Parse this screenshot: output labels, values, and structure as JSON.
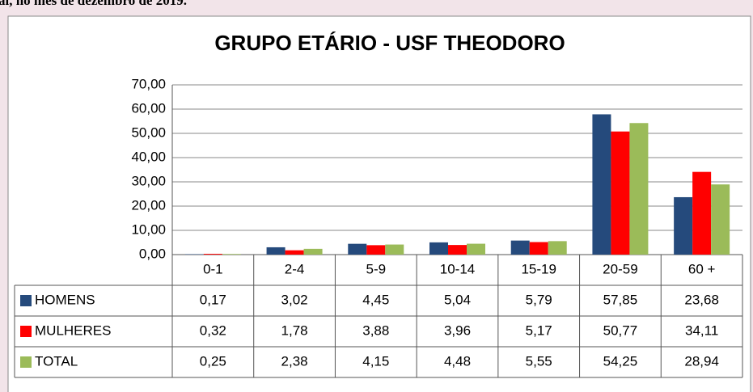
{
  "header_text": "al, no mês de dezembro de 2019.",
  "chart_data": {
    "type": "bar",
    "title": "GRUPO ETÁRIO -  USF THEODORO",
    "categories": [
      "0-1",
      "2-4",
      "5-9",
      "10-14",
      "15-19",
      "20-59",
      "60 +"
    ],
    "series": [
      {
        "name": "HOMENS",
        "color": "#254a7c",
        "values": [
          0.17,
          3.02,
          4.45,
          5.04,
          5.79,
          57.85,
          23.68
        ],
        "value_labels": [
          "0,17",
          "3,02",
          "4,45",
          "5,04",
          "5,79",
          "57,85",
          "23,68"
        ]
      },
      {
        "name": "MULHERES",
        "color": "#ff0000",
        "values": [
          0.32,
          1.78,
          3.88,
          3.96,
          5.17,
          50.77,
          34.11
        ],
        "value_labels": [
          "0,32",
          "1,78",
          "3,88",
          "3,96",
          "5,17",
          "50,77",
          "34,11"
        ]
      },
      {
        "name": "TOTAL",
        "color": "#9bbb59",
        "values": [
          0.25,
          2.38,
          4.15,
          4.48,
          5.55,
          54.25,
          28.94
        ],
        "value_labels": [
          "0,25",
          "2,38",
          "4,15",
          "4,48",
          "5,55",
          "54,25",
          "28,94"
        ]
      }
    ],
    "ylim": [
      0,
      70
    ],
    "yticks": [
      {
        "value": 0,
        "label": "0,00"
      },
      {
        "value": 10,
        "label": "10,00"
      },
      {
        "value": 20,
        "label": "20,00"
      },
      {
        "value": 30,
        "label": "30,00"
      },
      {
        "value": 40,
        "label": "40,00"
      },
      {
        "value": 50,
        "label": "50,00"
      },
      {
        "value": 60,
        "label": "60,00"
      },
      {
        "value": 70,
        "label": "70,00"
      }
    ],
    "grid": true
  }
}
